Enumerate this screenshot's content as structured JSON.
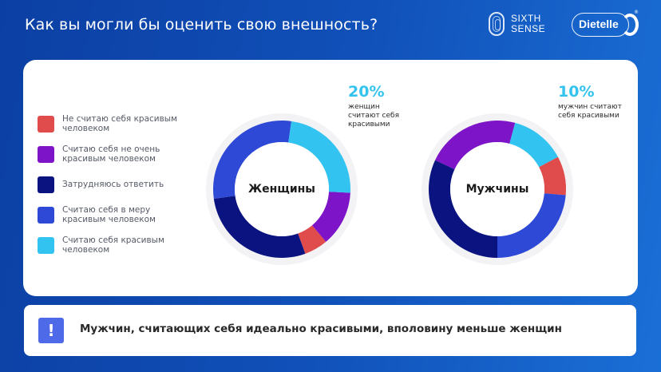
{
  "header": {
    "title": "Как вы могли бы оценить свою внешность?",
    "logos": [
      {
        "name": "SIXTH SENSE",
        "line1": "SIXTH",
        "line2": "SENSE"
      },
      {
        "name": "Dietelle",
        "label": "Dietelle",
        "reg": "®"
      }
    ]
  },
  "legend": {
    "items": [
      {
        "label": "Не считаю себя красивым человеком",
        "color": "#e04b4b"
      },
      {
        "label": "Считаю себя не очень красивым человеком",
        "color": "#7e14c8"
      },
      {
        "label": "Затрудняюсь ответить",
        "color": "#0a137f"
      },
      {
        "label": "Считаю себя в меру красивым человеком",
        "color": "#2e49d6"
      },
      {
        "label": "Считаю себя красивым человеком",
        "color": "#33c3f0"
      }
    ]
  },
  "women": {
    "center_label": "Женщины",
    "annotation_pct": "20%",
    "annotation_text": "женщин считают себя красивыми"
  },
  "men": {
    "center_label": "Мужчины",
    "annotation_pct": "10%",
    "annotation_text": "мужчин считают себя красивыми"
  },
  "footer": {
    "icon": "exclamation-icon",
    "text": "Мужчин, считающих себя идеально красивыми, вполовину меньше женщин"
  },
  "chart_data": [
    {
      "type": "pie",
      "title": "Женщины",
      "categories": [
        "Не считаю себя красивым человеком",
        "Считаю себя не очень красивым человеком",
        "Затрудняюсь ответить",
        "Считаю себя в меру красивым человеком",
        "Считаю себя красивым человеком"
      ],
      "values": [
        6,
        13,
        28,
        29,
        20
      ],
      "colors": [
        "#e04b4b",
        "#7e14c8",
        "#0a137f",
        "#2e49d6",
        "#33c3f0"
      ],
      "annotation": "20% женщин считают себя красивыми",
      "donut": true,
      "render_arcs_deg": [
        [
          140,
          160
        ],
        [
          93,
          140
        ],
        [
          160,
          262
        ],
        [
          262,
          368
        ],
        [
          8,
          93
        ]
      ]
    },
    {
      "type": "pie",
      "title": "Мужчины",
      "categories": [
        "Не считаю себя красивым человеком",
        "Считаю себя не очень красивым человеком",
        "Затрудняюсь ответить",
        "Считаю себя в меру красивым человеком",
        "Считаю себя красивым человеком"
      ],
      "values": [
        9,
        22,
        32,
        24,
        10
      ],
      "colors": [
        "#e04b4b",
        "#7e14c8",
        "#0a137f",
        "#2e49d6",
        "#33c3f0"
      ],
      "annotation": "10% мужчин считают себя красивыми",
      "donut": true,
      "render_arcs_deg": [
        [
          62,
          95
        ],
        [
          295,
          375
        ],
        [
          180,
          295
        ],
        [
          95,
          180
        ],
        [
          15,
          62
        ]
      ]
    }
  ]
}
